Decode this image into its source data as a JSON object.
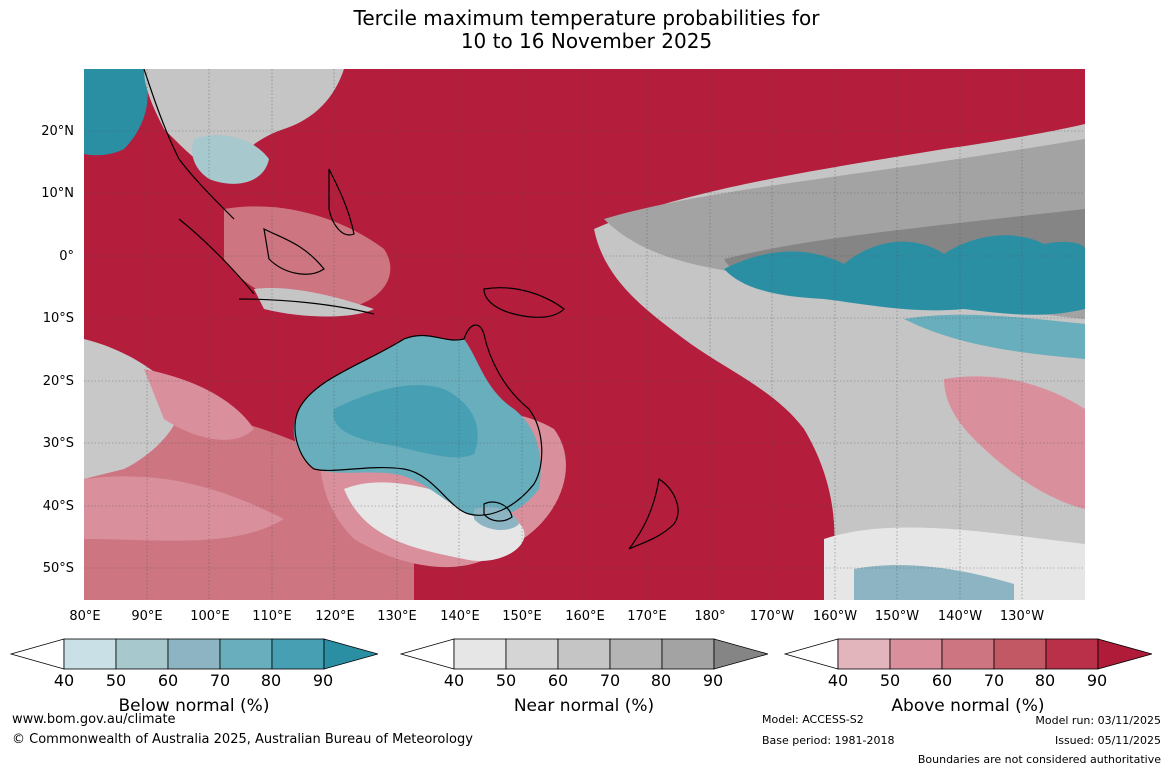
{
  "title_line1": "Tercile maximum temperature probabilities for",
  "title_line2": "10 to 16 November 2025",
  "lat_labels": [
    "20°N",
    "10°N",
    "0°",
    "10°S",
    "20°S",
    "30°S",
    "40°S",
    "50°S"
  ],
  "lon_labels": [
    "80°E",
    "90°E",
    "100°E",
    "110°E",
    "120°E",
    "130°E",
    "140°E",
    "150°E",
    "160°E",
    "170°E",
    "180°",
    "170°W",
    "160°W",
    "150°W",
    "140°W",
    "130°W"
  ],
  "colorbars": [
    {
      "title": "Below normal (%)",
      "ticks": [
        "40",
        "50",
        "60",
        "70",
        "80",
        "90"
      ],
      "colors": [
        "#ffffff",
        "#c9e0e6",
        "#a7c8cd",
        "#8db4c2",
        "#69aebc",
        "#469fb2",
        "#2b8fa4"
      ]
    },
    {
      "title": "Near normal (%)",
      "ticks": [
        "40",
        "50",
        "60",
        "70",
        "80",
        "90"
      ],
      "colors": [
        "#ffffff",
        "#e6e6e6",
        "#d5d5d5",
        "#c5c5c5",
        "#b4b4b4",
        "#a3a3a3",
        "#858585"
      ]
    },
    {
      "title": "Above normal (%)",
      "ticks": [
        "40",
        "50",
        "60",
        "70",
        "80",
        "90"
      ],
      "colors": [
        "#ffffff",
        "#e2b5bd",
        "#d9909c",
        "#cd7580",
        "#c25863",
        "#b93048",
        "#b11b3a"
      ]
    }
  ],
  "footer": {
    "website": "www.bom.gov.au/climate",
    "copyright": "© Commonwealth of Australia 2025, Australian Bureau of Meteorology",
    "model": "Model: ACCESS-S2",
    "base_period": "Base period: 1981-2018",
    "model_run": "Model run: 03/11/2025",
    "issued": "Issued: 05/11/2025",
    "disclaimer": "Boundaries are not considered authoritative"
  }
}
